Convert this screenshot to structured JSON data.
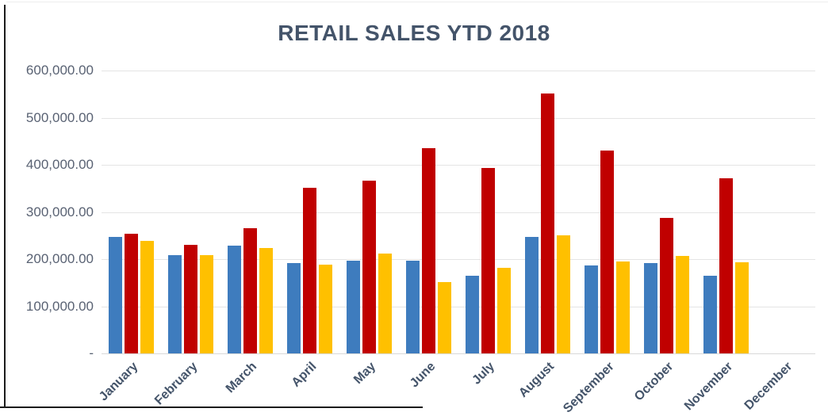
{
  "chart": {
    "title": "RETAIL SALES YTD 2018",
    "title_color": "#44546A",
    "y_axis": {
      "tick_labels": [
        "600,000.00",
        "500,000.00",
        "400,000.00",
        "300,000.00",
        "200,000.00",
        "100,000.00",
        "-"
      ],
      "label_color": "#596273"
    },
    "x_axis": {
      "label_color": "#44546A"
    },
    "gridline_color": "#E4E4E4",
    "baseline_color": "#D9D9D9"
  },
  "chart_data": {
    "type": "bar",
    "title": "RETAIL SALES YTD 2018",
    "categories": [
      "January",
      "February",
      "March",
      "April",
      "May",
      "June",
      "July",
      "August",
      "September",
      "October",
      "November",
      "December"
    ],
    "series": [
      {
        "name": "blue-series",
        "color": "#3E7CBE",
        "values": [
          247000,
          208000,
          228000,
          191000,
          197000,
          197000,
          164000,
          247000,
          187000,
          192000,
          164000,
          0
        ]
      },
      {
        "name": "red-series",
        "color": "#C00000",
        "values": [
          254000,
          230000,
          266000,
          352000,
          367000,
          436000,
          393000,
          552000,
          431000,
          287000,
          371000,
          0
        ]
      },
      {
        "name": "yellow-series",
        "color": "#FFC000",
        "values": [
          238000,
          209000,
          224000,
          188000,
          212000,
          152000,
          181000,
          251000,
          195000,
          206000,
          194000,
          0
        ]
      }
    ],
    "ylim": [
      0,
      600000
    ],
    "y_tick_step": 100000,
    "grid": true,
    "legend": false,
    "xlabel": "",
    "ylabel": ""
  }
}
